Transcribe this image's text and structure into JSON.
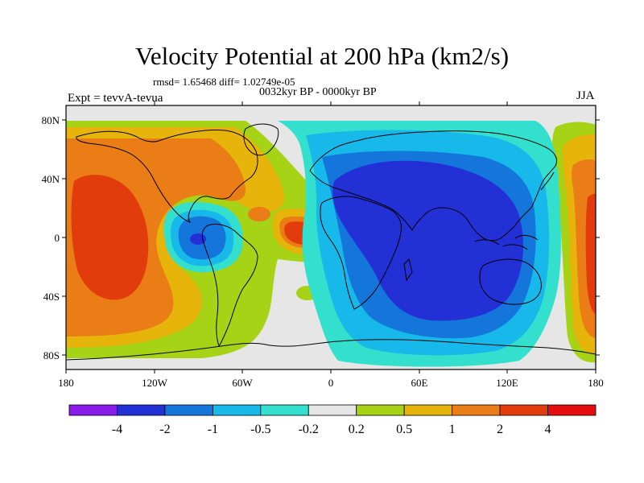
{
  "title": "Velocity Potential at 200 hPa (km2/s)",
  "stats": "rmsd= 1.65468 diff= 1.02749e-05",
  "period": "0032kyr BP - 0000kyr BP",
  "experiment": "Expt = tevvA-tevua",
  "season": "JJA",
  "lat_ticks": [
    "80N",
    "40N",
    "0",
    "40S",
    "80S"
  ],
  "lon_ticks": [
    "180",
    "120W",
    "60W",
    "0",
    "60E",
    "120E",
    "180"
  ],
  "colorbar": {
    "colors": [
      "#8a1bea",
      "#2230d6",
      "#1475db",
      "#16b9ea",
      "#33e0cd",
      "#e6e6e6",
      "#a6d316",
      "#e6b40a",
      "#ea7d15",
      "#e23c0c",
      "#e30d0d"
    ],
    "labels": [
      "-4",
      "-2",
      "-1",
      "-0.5",
      "-0.2",
      "0.2",
      "0.5",
      "1",
      "2",
      "4"
    ]
  },
  "map": {
    "background": "#e6e6e6",
    "fields": [
      {
        "level": "positive",
        "color": "#a6d316"
      },
      {
        "level": "positive",
        "color": "#e6b40a"
      },
      {
        "level": "positive",
        "color": "#ea7d15"
      },
      {
        "level": "positive",
        "color": "#e23c0c"
      },
      {
        "level": "negative",
        "color": "#33e0cd"
      },
      {
        "level": "negative",
        "color": "#16b9ea"
      },
      {
        "level": "negative",
        "color": "#1475db"
      },
      {
        "level": "negative",
        "color": "#2230d6"
      }
    ]
  }
}
